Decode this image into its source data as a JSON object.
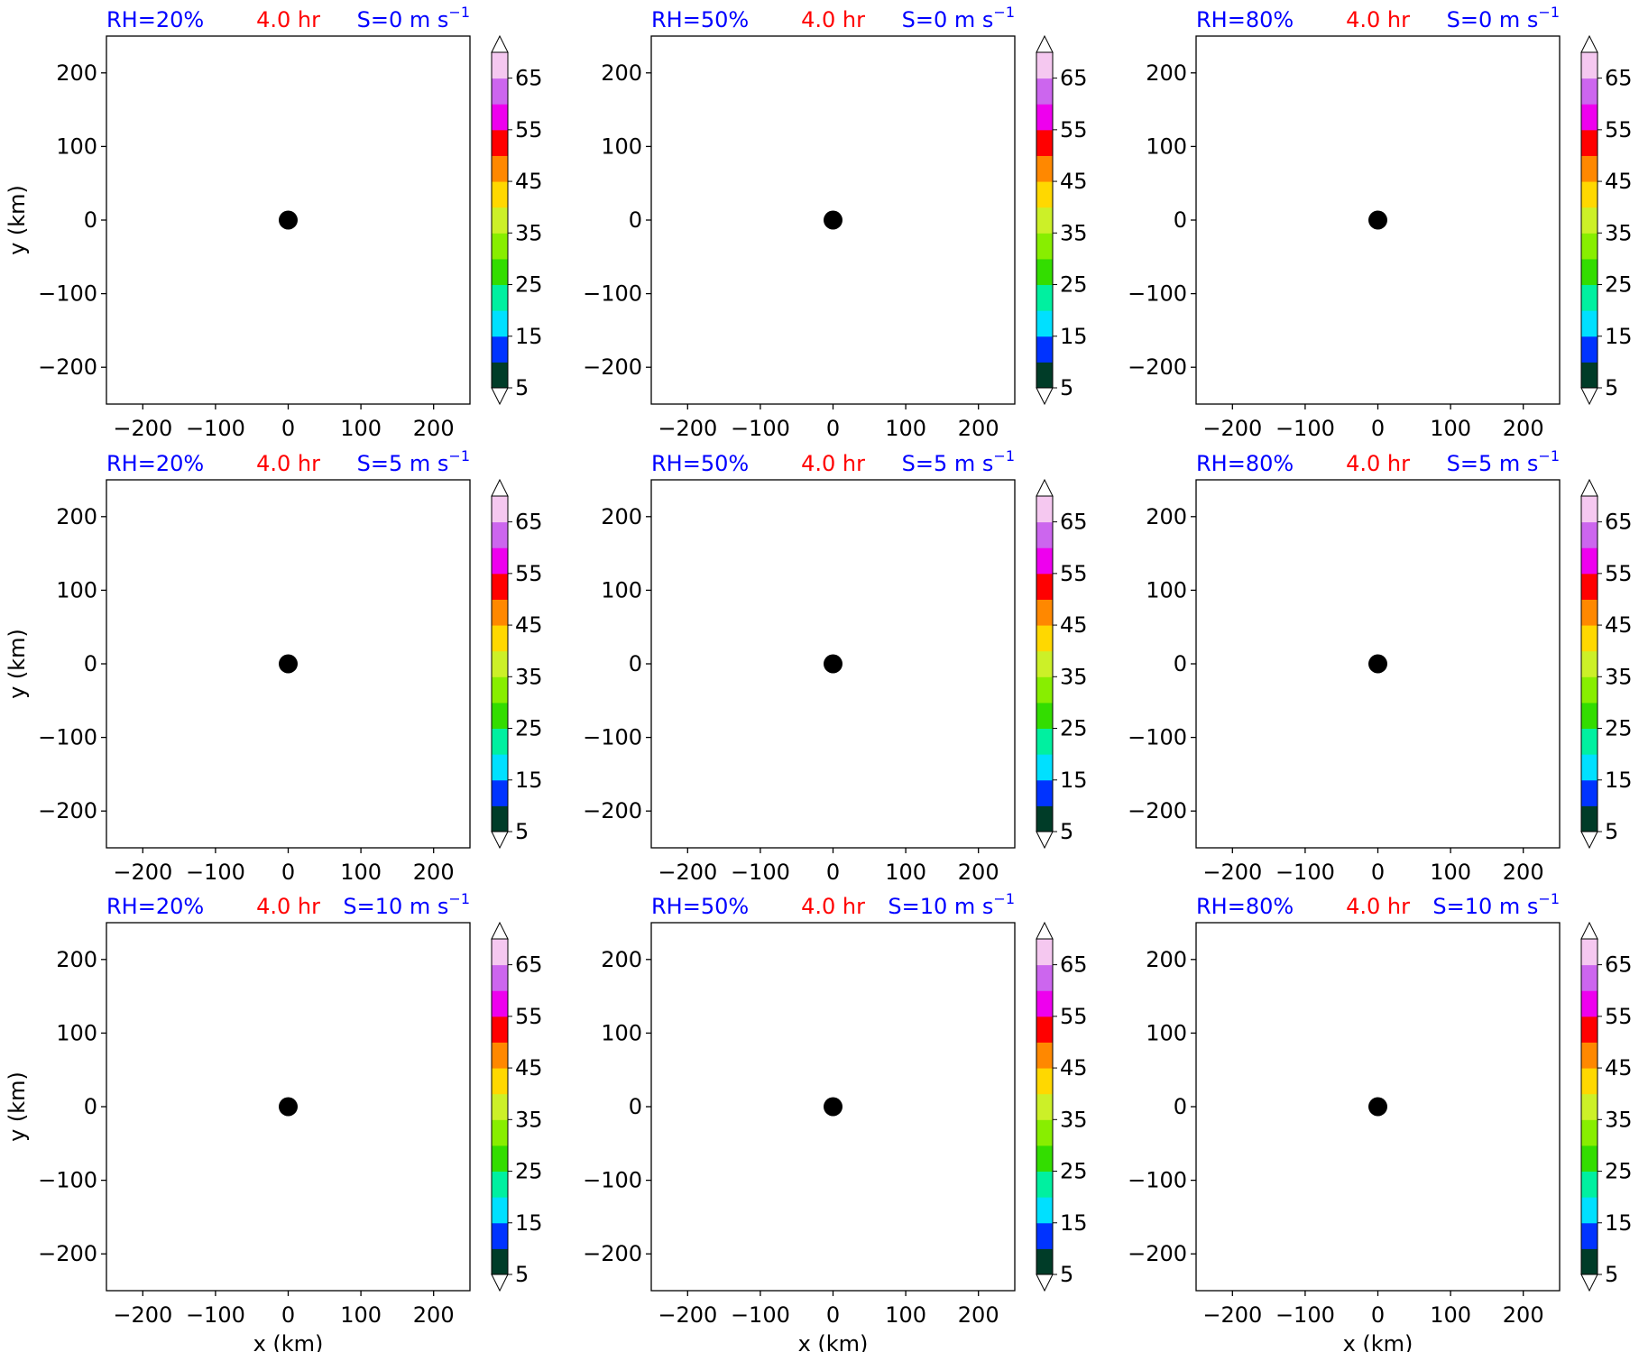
{
  "figure": {
    "colors": {
      "blue_label": "#0000ff",
      "red_label": "#ff0000",
      "frame": "#000000",
      "background": "#ffffff"
    },
    "colorbar": {
      "ticks": [
        "5",
        "15",
        "25",
        "35",
        "45",
        "55",
        "65"
      ],
      "levels": [
        5,
        10,
        15,
        20,
        25,
        30,
        35,
        40,
        45,
        50,
        55,
        60,
        65,
        70
      ],
      "colors": [
        "#003c28",
        "#0033ff",
        "#00e0ff",
        "#00f0a0",
        "#33dd00",
        "#88ee00",
        "#ccf028",
        "#ffd800",
        "#ff8800",
        "#ff0000",
        "#ee00ee",
        "#cc66ee",
        "#f5c8f0"
      ],
      "extend": "both"
    }
  },
  "chart_data": [
    {
      "type": "scatter",
      "left_label": "RH=20%",
      "center_label": "4.0 hr",
      "right_label": "S=0 m s",
      "right_label_exponent": "−1",
      "xlabel": "",
      "ylabel": "y (km)",
      "xlim": [
        -250,
        250
      ],
      "ylim": [
        -250,
        250
      ],
      "xticks": [
        "−200",
        "−100",
        "0",
        "100",
        "200"
      ],
      "yticks": [
        "200",
        "100",
        "0",
        "−100",
        "−200"
      ],
      "points": [
        {
          "x": 0,
          "y": 0
        }
      ]
    },
    {
      "type": "scatter",
      "left_label": "RH=50%",
      "center_label": "4.0 hr",
      "right_label": "S=0 m s",
      "right_label_exponent": "−1",
      "xlabel": "",
      "ylabel": "",
      "xlim": [
        -250,
        250
      ],
      "ylim": [
        -250,
        250
      ],
      "xticks": [
        "−200",
        "−100",
        "0",
        "100",
        "200"
      ],
      "yticks": [
        "200",
        "100",
        "0",
        "−100",
        "−200"
      ],
      "points": [
        {
          "x": 0,
          "y": 0
        }
      ]
    },
    {
      "type": "scatter",
      "left_label": "RH=80%",
      "center_label": "4.0 hr",
      "right_label": "S=0 m s",
      "right_label_exponent": "−1",
      "xlabel": "",
      "ylabel": "",
      "xlim": [
        -250,
        250
      ],
      "ylim": [
        -250,
        250
      ],
      "xticks": [
        "−200",
        "−100",
        "0",
        "100",
        "200"
      ],
      "yticks": [
        "200",
        "100",
        "0",
        "−100",
        "−200"
      ],
      "points": [
        {
          "x": 0,
          "y": 0
        }
      ]
    },
    {
      "type": "scatter",
      "left_label": "RH=20%",
      "center_label": "4.0 hr",
      "right_label": "S=5 m s",
      "right_label_exponent": "−1",
      "xlabel": "",
      "ylabel": "y (km)",
      "xlim": [
        -250,
        250
      ],
      "ylim": [
        -250,
        250
      ],
      "xticks": [
        "−200",
        "−100",
        "0",
        "100",
        "200"
      ],
      "yticks": [
        "200",
        "100",
        "0",
        "−100",
        "−200"
      ],
      "points": [
        {
          "x": 0,
          "y": 0
        }
      ]
    },
    {
      "type": "scatter",
      "left_label": "RH=50%",
      "center_label": "4.0 hr",
      "right_label": "S=5 m s",
      "right_label_exponent": "−1",
      "xlabel": "",
      "ylabel": "",
      "xlim": [
        -250,
        250
      ],
      "ylim": [
        -250,
        250
      ],
      "xticks": [
        "−200",
        "−100",
        "0",
        "100",
        "200"
      ],
      "yticks": [
        "200",
        "100",
        "0",
        "−100",
        "−200"
      ],
      "points": [
        {
          "x": 0,
          "y": 0
        }
      ]
    },
    {
      "type": "scatter",
      "left_label": "RH=80%",
      "center_label": "4.0 hr",
      "right_label": "S=5 m s",
      "right_label_exponent": "−1",
      "xlabel": "",
      "ylabel": "",
      "xlim": [
        -250,
        250
      ],
      "ylim": [
        -250,
        250
      ],
      "xticks": [
        "−200",
        "−100",
        "0",
        "100",
        "200"
      ],
      "yticks": [
        "200",
        "100",
        "0",
        "−100",
        "−200"
      ],
      "points": [
        {
          "x": 0,
          "y": 0
        }
      ]
    },
    {
      "type": "scatter",
      "left_label": "RH=20%",
      "center_label": "4.0 hr",
      "right_label": "S=10 m s",
      "right_label_exponent": "−1",
      "xlabel": "x (km)",
      "ylabel": "y (km)",
      "xlim": [
        -250,
        250
      ],
      "ylim": [
        -250,
        250
      ],
      "xticks": [
        "−200",
        "−100",
        "0",
        "100",
        "200"
      ],
      "yticks": [
        "200",
        "100",
        "0",
        "−100",
        "−200"
      ],
      "points": [
        {
          "x": 0,
          "y": 0
        }
      ]
    },
    {
      "type": "scatter",
      "left_label": "RH=50%",
      "center_label": "4.0 hr",
      "right_label": "S=10 m s",
      "right_label_exponent": "−1",
      "xlabel": "x (km)",
      "ylabel": "",
      "xlim": [
        -250,
        250
      ],
      "ylim": [
        -250,
        250
      ],
      "xticks": [
        "−200",
        "−100",
        "0",
        "100",
        "200"
      ],
      "yticks": [
        "200",
        "100",
        "0",
        "−100",
        "−200"
      ],
      "points": [
        {
          "x": 0,
          "y": 0
        }
      ]
    },
    {
      "type": "scatter",
      "left_label": "RH=80%",
      "center_label": "4.0 hr",
      "right_label": "S=10 m s",
      "right_label_exponent": "−1",
      "xlabel": "x (km)",
      "ylabel": "",
      "xlim": [
        -250,
        250
      ],
      "ylim": [
        -250,
        250
      ],
      "xticks": [
        "−200",
        "−100",
        "0",
        "100",
        "200"
      ],
      "yticks": [
        "200",
        "100",
        "0",
        "−100",
        "−200"
      ],
      "points": [
        {
          "x": 0,
          "y": 0
        }
      ]
    }
  ]
}
